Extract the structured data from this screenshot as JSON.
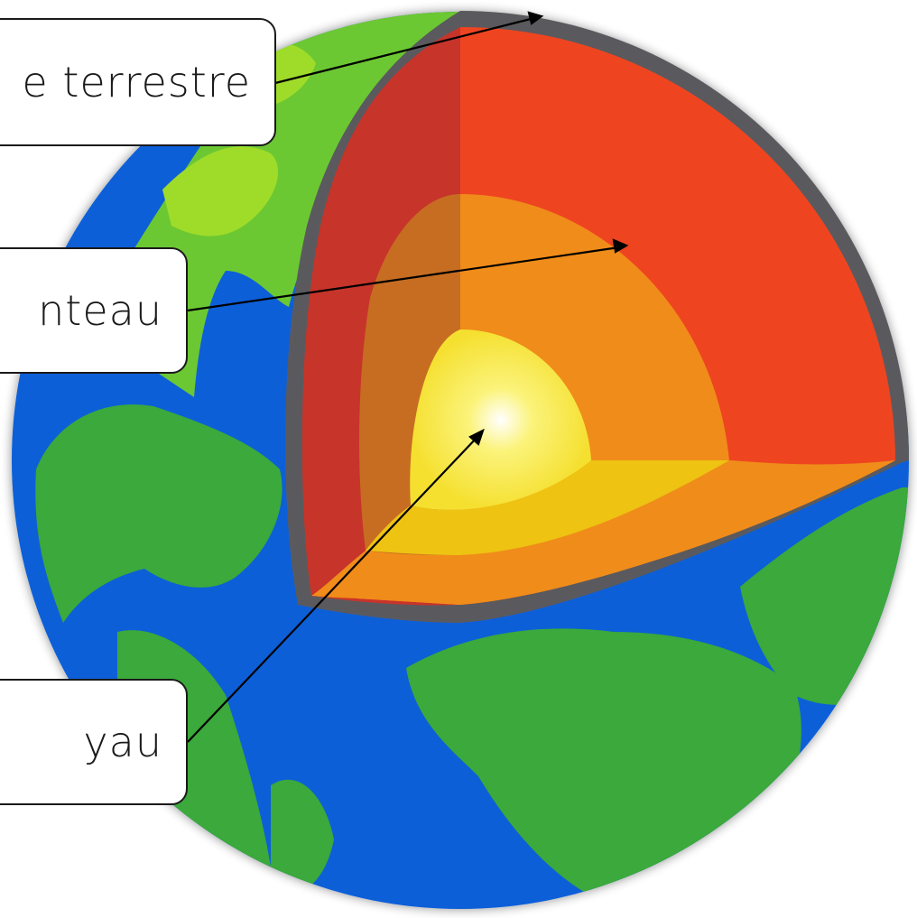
{
  "labels": {
    "crust": "e terrestre",
    "mantle": "nteau",
    "core": "yau"
  },
  "colors": {
    "ocean": "#0a5fd8",
    "land": "#3aa93a",
    "land_light": "#8fd42a",
    "crust_rim": "#5a5a5e",
    "mantle": "#ee4520",
    "mantle_dark": "#c7342a",
    "outer_core": "#f08c1a",
    "inner_core": "#f5d623",
    "inner_core_center": "#ffffff"
  }
}
